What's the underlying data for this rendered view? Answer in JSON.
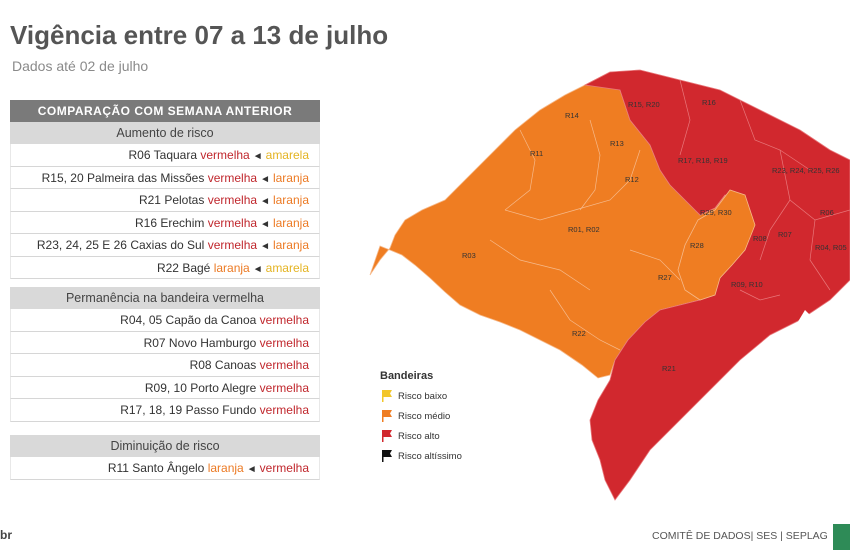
{
  "header": {
    "title": "Vigência entre 07 a 13 de julho",
    "subtitle": "Dados até 02 de julho"
  },
  "panel": {
    "heading": "COMPARAÇÃO  COM SEMANA ANTERIOR",
    "aumento": {
      "heading": "Aumento de risco",
      "rows": [
        {
          "code": "R06",
          "name": "Taquara",
          "from": "vermelha",
          "to": "amarela"
        },
        {
          "code": "R15, 20",
          "name": "Palmeira das Missões",
          "from": "vermelha",
          "to": "laranja"
        },
        {
          "code": "R21",
          "name": "Pelotas",
          "from": "vermelha",
          "to": "laranja"
        },
        {
          "code": "R16",
          "name": "Erechim",
          "from": "vermelha",
          "to": "laranja"
        },
        {
          "code": "R23, 24, 25 E 26",
          "name": "Caxias do Sul",
          "from": "vermelha",
          "to": "laranja"
        },
        {
          "code": "R22",
          "name": "Bagé",
          "from": "laranja",
          "to": "amarela"
        }
      ]
    },
    "permanencia": {
      "heading": "Permanência na bandeira vermelha",
      "rows": [
        {
          "code": "R04, 05",
          "name": "Capão da Canoa",
          "flag": "vermelha"
        },
        {
          "code": "R07",
          "name": "Novo  Hamburgo",
          "flag": "vermelha"
        },
        {
          "code": "R08",
          "name": "Canoas",
          "flag": "vermelha"
        },
        {
          "code": "R09, 10",
          "name": "Porto Alegre",
          "flag": "vermelha"
        },
        {
          "code": "R17, 18, 19",
          "name": "Passo Fundo",
          "flag": "vermelha"
        }
      ]
    },
    "diminuicao": {
      "heading": "Diminuição de risco",
      "rows": [
        {
          "code": "R11",
          "name": "Santo Ângelo",
          "from": "laranja",
          "to": "vermelha"
        }
      ]
    }
  },
  "map": {
    "region_labels": {
      "r14": "R14",
      "r11": "R11",
      "r13": "R13",
      "r12": "R12",
      "r0102": "R01, R02",
      "r03": "R03",
      "r22": "R22",
      "r27": "R27",
      "r28": "R28",
      "r2930": "R29, R30",
      "r1520": "R15, R20",
      "r16": "R16",
      "r171819": "R17, R18, R19",
      "r2326": "R23, R24, R25, R26",
      "r06": "R06",
      "r08": "R08",
      "r07": "R07",
      "r0405": "R04, R05",
      "r0910": "R09, R10",
      "r21": "R21"
    },
    "colors": {
      "laranja": "#ef7d22",
      "vermelha": "#d1282e",
      "amarela": "#f2c62a",
      "preta": "#111111"
    }
  },
  "legend": {
    "title": "Bandeiras",
    "items": [
      {
        "label": "Risco baixo",
        "color": "#f2c62a"
      },
      {
        "label": "Risco médio",
        "color": "#ef7d22"
      },
      {
        "label": "Risco alto",
        "color": "#d1282e"
      },
      {
        "label": "Risco altíssimo",
        "color": "#111111"
      }
    ]
  },
  "footer": {
    "text": "COMITÊ DE DADOS|  SES  |  SEPLAG",
    "corner": "br"
  }
}
